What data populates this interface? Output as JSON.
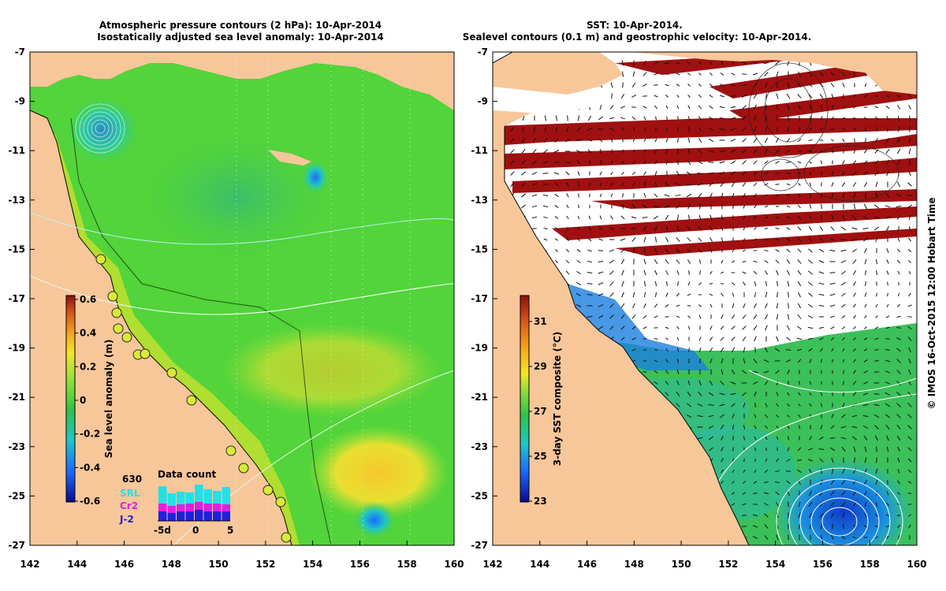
{
  "left_panel": {
    "title_line1": "Atmospheric pressure contours (2 hPa): 10-Apr-2014",
    "title_line2": "Isostatically adjusted sea level anomaly: 10-Apr-2014",
    "colorbar": {
      "label": "Sea level anomaly (m)",
      "ticks": [
        "0.6",
        "0.4",
        "0.2",
        "0",
        "-0.2",
        "-0.4",
        "-0.6"
      ]
    },
    "data_count": {
      "title": "Data count",
      "max_label": "630",
      "series": [
        {
          "name": "SRL",
          "color": "#22e0e8"
        },
        {
          "name": "Cr2",
          "color": "#e020e0"
        },
        {
          "name": "J-2",
          "color": "#2020e0"
        }
      ],
      "axis_labels": [
        "-5d",
        "0",
        "5"
      ]
    }
  },
  "right_panel": {
    "title_line1": "SST: 10-Apr-2014.",
    "title_line2": "Sealevel contours (0.1 m) and geostrophic velocity: 10-Apr-2014.",
    "colorbar": {
      "label": "3-day SST composite (°C)",
      "ticks": [
        "31",
        "29",
        "27",
        "25",
        "23"
      ]
    }
  },
  "axes": {
    "y_ticks": [
      "-7",
      "-9",
      "-11",
      "-13",
      "-15",
      "-17",
      "-19",
      "-21",
      "-23",
      "-25",
      "-27"
    ],
    "x_ticks": [
      "142",
      "144",
      "146",
      "148",
      "150",
      "152",
      "154",
      "156",
      "158",
      "160"
    ]
  },
  "credit": "© IMOS 16-Oct-2015 12:00 Hobart Time",
  "colors": {
    "land": "#f7c79a",
    "ocean_green": "#52d43a",
    "sst_red": "#a01010"
  }
}
